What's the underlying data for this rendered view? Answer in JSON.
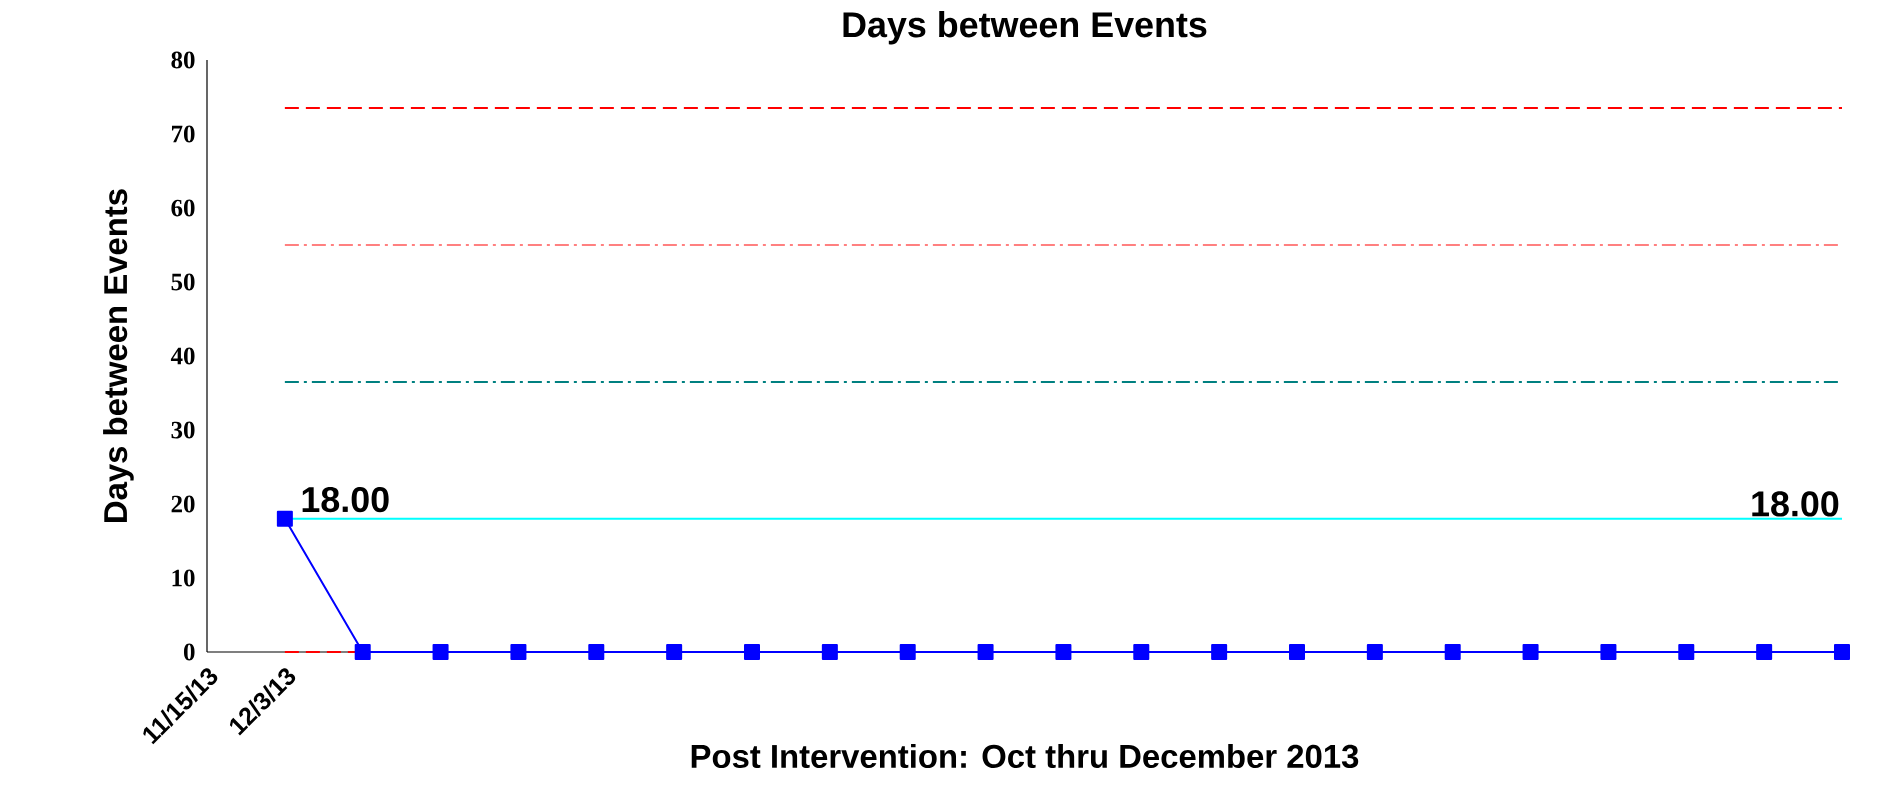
{
  "chart_data": {
    "type": "line",
    "title": "Days between Events",
    "xlabel": "Post Intervention: Oct thru December 2013",
    "ylabel": "Days  between Events",
    "categories": [
      "11/15/13",
      "12/3/13",
      null,
      null,
      null,
      null,
      null,
      null,
      null,
      null,
      null,
      null,
      null,
      null,
      null,
      null,
      null,
      null,
      null,
      null,
      null,
      null
    ],
    "values": [
      null,
      18,
      0,
      0,
      0,
      0,
      0,
      0,
      0,
      0,
      0,
      0,
      0,
      0,
      0,
      0,
      0,
      0,
      0,
      0,
      0,
      0
    ],
    "value_labels": [
      null,
      "18.00",
      null,
      null,
      null,
      null,
      null,
      null,
      null,
      null,
      null,
      null,
      null,
      null,
      null,
      null,
      null,
      null,
      null,
      null,
      null,
      null
    ],
    "color": "#0000ff",
    "marker": "square",
    "line_style": "solid",
    "ylim": [
      0,
      80
    ],
    "yticks": [
      0,
      10,
      20,
      30,
      40,
      50,
      60,
      70,
      80
    ],
    "grid": false,
    "ref_lines": [
      {
        "axis": "y",
        "value": 73.5,
        "color": "#ff0000",
        "line_style": "dashed"
      },
      {
        "axis": "y",
        "value": 55,
        "color": "#ff8080",
        "line_style": "dashdot"
      },
      {
        "axis": "y",
        "value": 36.5,
        "color": "#008080",
        "line_style": "dashdot"
      },
      {
        "axis": "y",
        "value": 18,
        "color": "#00ffff",
        "line_style": "solid",
        "label": "18.00"
      },
      {
        "axis": "y",
        "value": 0,
        "color": "#ff0000",
        "line_style": "dashed"
      }
    ]
  }
}
